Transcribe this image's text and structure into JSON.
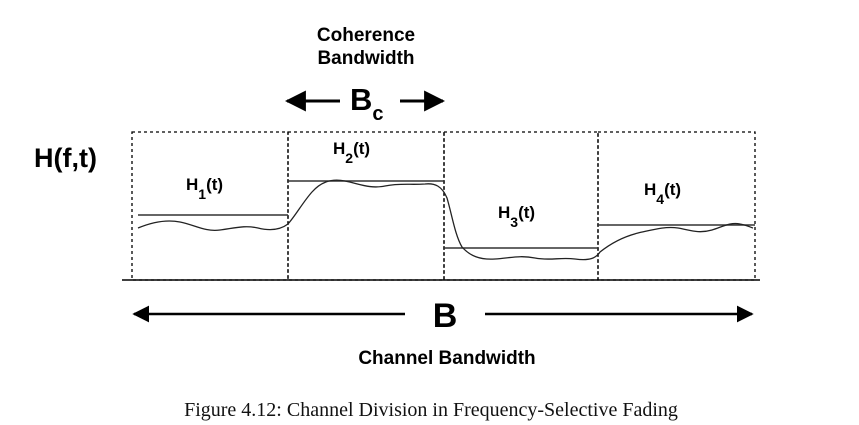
{
  "coherence": {
    "line1": "Coherence",
    "line2": "Bandwidth",
    "symbol": "B",
    "symbol_sub": "c"
  },
  "response_label": "H(f,t)",
  "subbands": [
    {
      "letter": "H",
      "sub": "1",
      "arg": "(t)"
    },
    {
      "letter": "H",
      "sub": "2",
      "arg": "(t)"
    },
    {
      "letter": "H",
      "sub": "3",
      "arg": "(t)"
    },
    {
      "letter": "H",
      "sub": "4",
      "arg": "(t)"
    }
  ],
  "channel": {
    "symbol": "B",
    "label": "Channel Bandwidth"
  },
  "caption": "Figure 4.12: Channel Division in Frequency-Selective Fading"
}
